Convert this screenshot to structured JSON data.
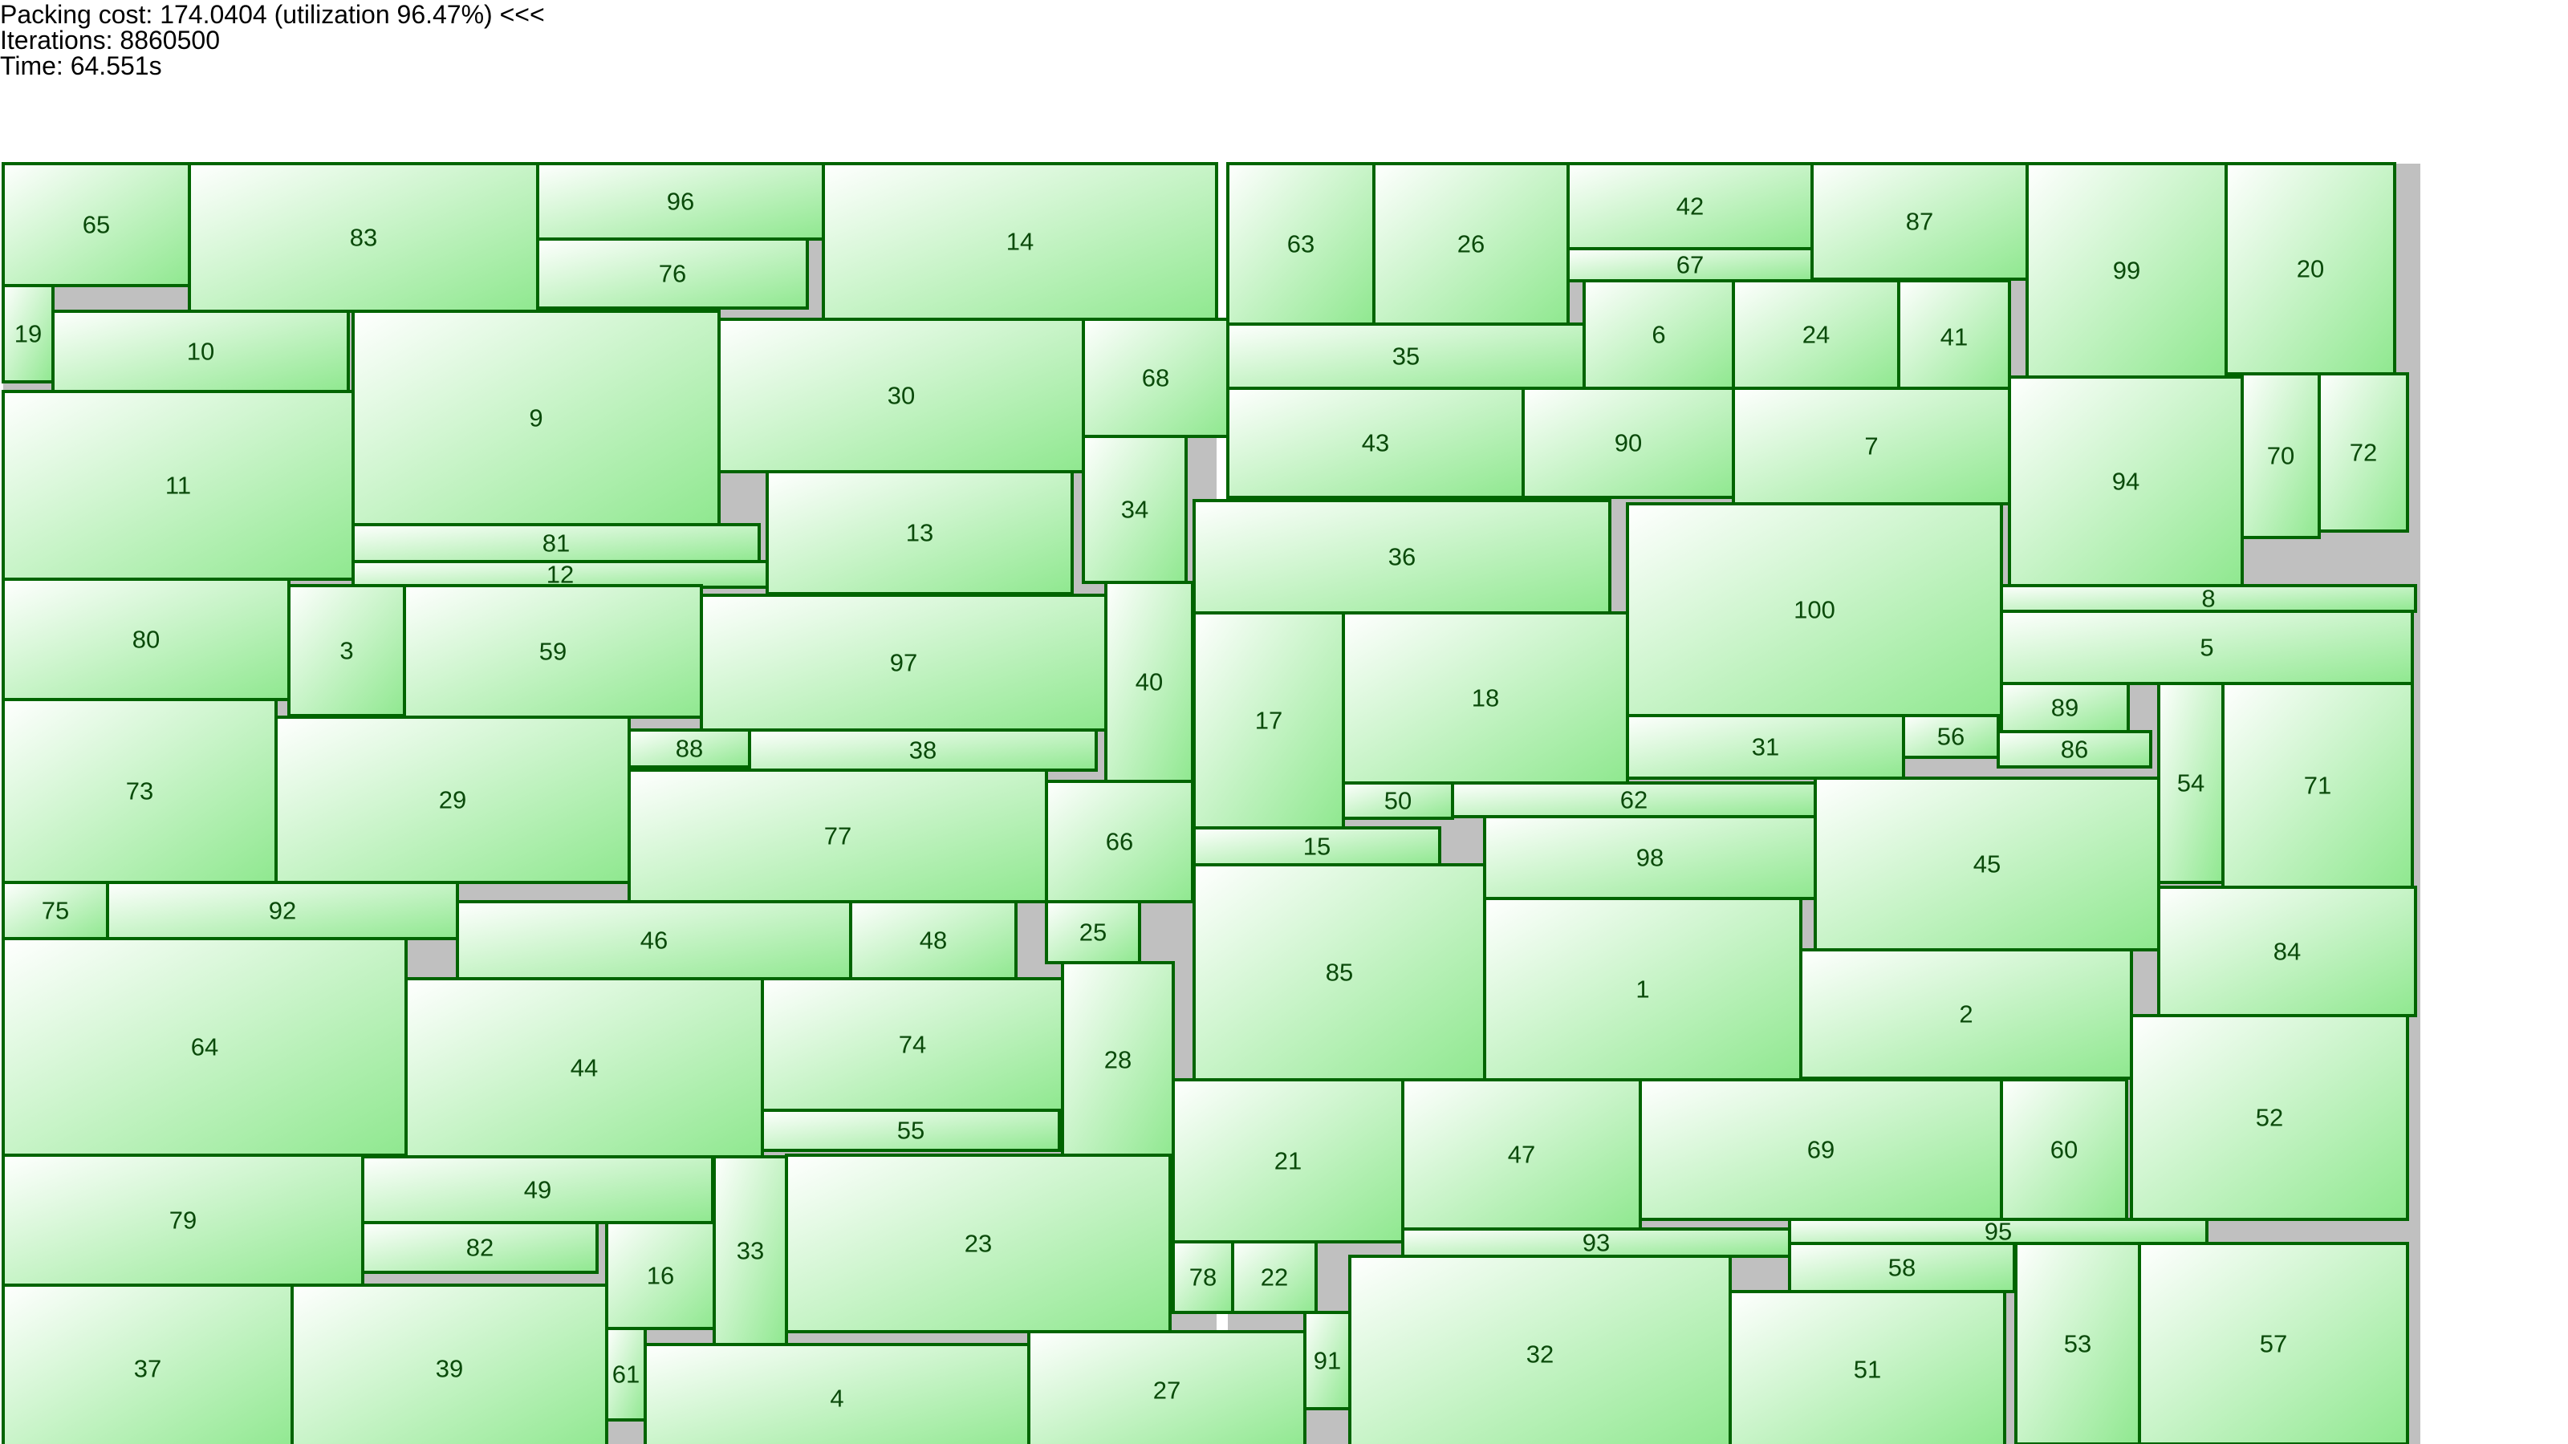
{
  "stats": {
    "cost_line": "Packing cost: 174.0404 (utilization 96.47%) <<<",
    "iterations_line": "Iterations: 8860500",
    "time_line": "Time: 64.551s"
  },
  "colors": {
    "fill_light": "#ffffff",
    "fill_dark": "#8fe88f",
    "border": "#006400",
    "label": "#0a4a0a",
    "background_bins": "#c0c0c0"
  },
  "packing": {
    "cost": 174.0404,
    "utilization_percent": 96.47,
    "iterations": 8860500,
    "time_s": 64.551,
    "box_count": 100
  }
}
